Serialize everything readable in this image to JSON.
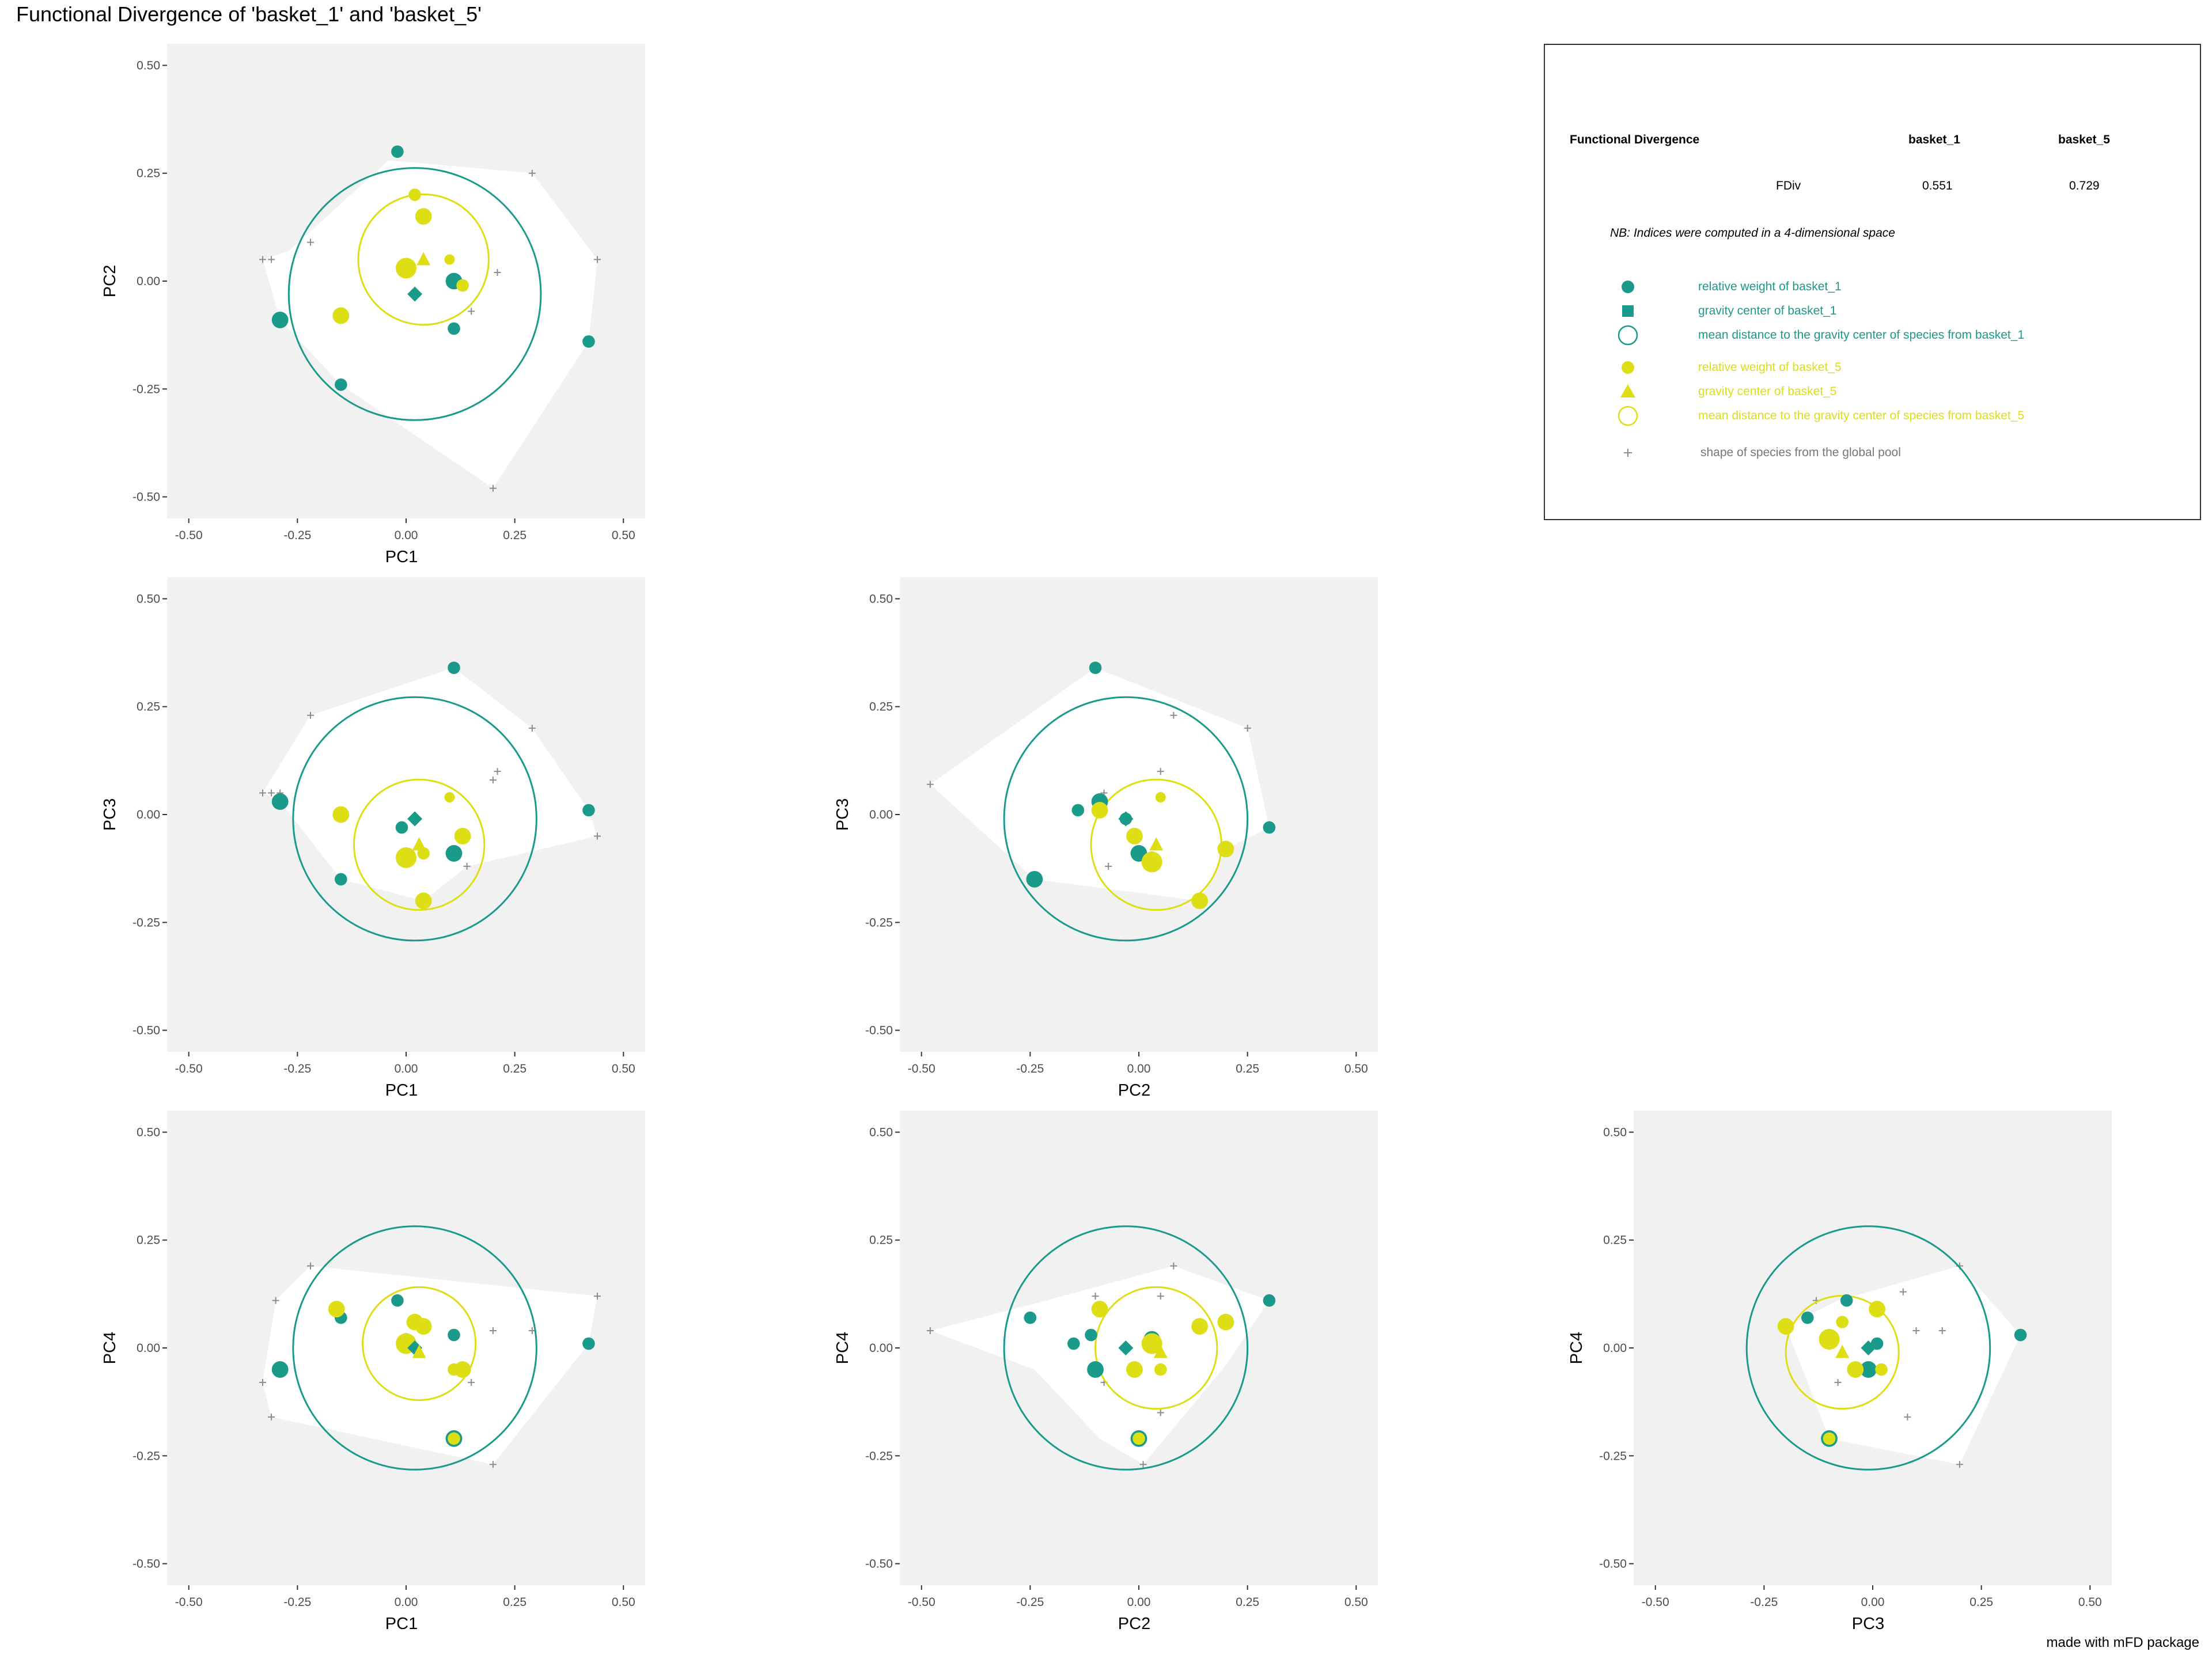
{
  "page": {
    "title": "Functional Divergence of 'basket_1' and 'basket_5'",
    "caption": "made with mFD package"
  },
  "colors": {
    "basket_1": "#1a9a8a",
    "basket_5": "#dede14",
    "pool": "#8c8c8c",
    "panel_bg": "#f1f1f1",
    "hull": "#ffffff"
  },
  "legend": {
    "header": {
      "title": "Functional Divergence",
      "col1": "basket_1",
      "col2": "basket_5"
    },
    "row": {
      "label": "FDiv",
      "v1": "0.551",
      "v2": "0.729"
    },
    "note": "NB: Indices were computed in a 4-dimensional space",
    "items": [
      {
        "symbol": "circle",
        "group": "basket_1",
        "text": "relative weight of basket_1"
      },
      {
        "symbol": "square",
        "group": "basket_1",
        "text": " gravity center of basket_1"
      },
      {
        "symbol": "open-circle",
        "group": "basket_1",
        "text": "mean distance to the gravity center of species from basket_1"
      },
      {
        "symbol": "circle",
        "group": "basket_5",
        "text": "relative weight of basket_5"
      },
      {
        "symbol": "triangle",
        "group": "basket_5",
        "text": " gravity center of basket_5"
      },
      {
        "symbol": "open-circle",
        "group": "basket_5",
        "text": "mean distance to the gravity center of species from basket_5"
      },
      {
        "symbol": "plus",
        "group": "pool",
        "text": "shape of species from the global pool"
      }
    ]
  },
  "chart_data": [
    {
      "type": "scatter",
      "xlabel": "PC1",
      "ylabel": "PC2",
      "xlim": [
        -0.55,
        0.55
      ],
      "ylim": [
        -0.55,
        0.55
      ],
      "ticks": [
        "-0.50",
        "-0.25",
        "0.00",
        "0.25",
        "0.50"
      ],
      "hull": [
        [
          -0.33,
          0.05
        ],
        [
          -0.27,
          0.07
        ],
        [
          -0.04,
          0.28
        ],
        [
          0.29,
          0.25
        ],
        [
          0.44,
          0.05
        ],
        [
          0.42,
          -0.14
        ],
        [
          0.2,
          -0.48
        ],
        [
          -0.15,
          -0.24
        ],
        [
          -0.29,
          -0.09
        ]
      ],
      "pool": [
        [
          -0.33,
          0.05
        ],
        [
          -0.31,
          0.05
        ],
        [
          -0.22,
          0.09
        ],
        [
          0.29,
          0.25
        ],
        [
          0.44,
          0.05
        ],
        [
          0.21,
          0.02
        ],
        [
          0.15,
          -0.07
        ],
        [
          0.2,
          -0.48
        ]
      ],
      "circle_1": {
        "center": [
          0.02,
          -0.03
        ],
        "r": 0.29
      },
      "circle_5": {
        "center": [
          0.04,
          0.05
        ],
        "r": 0.15
      },
      "basket_1": [
        [
          -0.02,
          0.3,
          3
        ],
        [
          -0.29,
          -0.09,
          4
        ],
        [
          -0.15,
          -0.24,
          3
        ],
        [
          0.0,
          0.03,
          3
        ],
        [
          0.11,
          0.0,
          4
        ],
        [
          0.11,
          -0.11,
          3
        ],
        [
          0.42,
          -0.14,
          3
        ]
      ],
      "basket_5": [
        [
          0.02,
          0.2,
          3
        ],
        [
          0.04,
          0.15,
          4
        ],
        [
          -0.15,
          -0.08,
          4
        ],
        [
          0.0,
          0.03,
          5
        ],
        [
          0.1,
          0.05,
          2.5
        ],
        [
          0.13,
          -0.01,
          3
        ]
      ],
      "gravity_1": [
        0.02,
        -0.03
      ],
      "gravity_5": [
        0.04,
        0.05
      ]
    },
    {
      "type": "scatter",
      "xlabel": "PC1",
      "ylabel": "PC3",
      "xlim": [
        -0.55,
        0.55
      ],
      "ylim": [
        -0.55,
        0.55
      ],
      "ticks": [
        "-0.50",
        "-0.25",
        "0.00",
        "0.25",
        "0.50"
      ],
      "hull": [
        [
          -0.33,
          0.05
        ],
        [
          -0.22,
          0.23
        ],
        [
          0.11,
          0.34
        ],
        [
          0.29,
          0.2
        ],
        [
          0.42,
          0.01
        ],
        [
          0.44,
          -0.05
        ],
        [
          0.14,
          -0.12
        ],
        [
          0.04,
          -0.2
        ],
        [
          -0.15,
          -0.15
        ],
        [
          -0.29,
          0.03
        ]
      ],
      "pool": [
        [
          -0.33,
          0.05
        ],
        [
          -0.31,
          0.05
        ],
        [
          -0.29,
          0.05
        ],
        [
          -0.22,
          0.23
        ],
        [
          0.29,
          0.2
        ],
        [
          0.21,
          0.1
        ],
        [
          0.2,
          0.08
        ],
        [
          0.44,
          -0.05
        ],
        [
          0.14,
          -0.12
        ]
      ],
      "circle_1": {
        "center": [
          0.02,
          -0.01
        ],
        "r": 0.28
      },
      "circle_5": {
        "center": [
          0.03,
          -0.07
        ],
        "r": 0.15
      },
      "basket_1": [
        [
          0.11,
          0.34,
          3
        ],
        [
          -0.29,
          0.03,
          4
        ],
        [
          -0.15,
          -0.15,
          3
        ],
        [
          -0.01,
          -0.03,
          3
        ],
        [
          0.0,
          -0.1,
          3
        ],
        [
          0.11,
          -0.09,
          4
        ],
        [
          0.42,
          0.01,
          3
        ]
      ],
      "basket_5": [
        [
          0.1,
          0.04,
          2.5
        ],
        [
          -0.15,
          0.0,
          4
        ],
        [
          0.0,
          -0.1,
          5
        ],
        [
          0.04,
          -0.09,
          3
        ],
        [
          0.13,
          -0.05,
          4
        ],
        [
          0.04,
          -0.2,
          4
        ]
      ],
      "gravity_1": [
        0.02,
        -0.01
      ],
      "gravity_5": [
        0.03,
        -0.07
      ]
    },
    {
      "type": "scatter",
      "xlabel": "PC2",
      "ylabel": "PC3",
      "xlim": [
        -0.55,
        0.55
      ],
      "ylim": [
        -0.55,
        0.55
      ],
      "ticks": [
        "-0.50",
        "-0.25",
        "0.00",
        "0.25",
        "0.50"
      ],
      "hull": [
        [
          -0.48,
          0.07
        ],
        [
          -0.1,
          0.34
        ],
        [
          0.25,
          0.2
        ],
        [
          0.3,
          -0.03
        ],
        [
          0.2,
          -0.08
        ],
        [
          0.14,
          -0.2
        ],
        [
          -0.24,
          -0.15
        ]
      ],
      "pool": [
        [
          -0.48,
          0.07
        ],
        [
          0.08,
          0.23
        ],
        [
          0.25,
          0.2
        ],
        [
          0.05,
          0.1
        ],
        [
          -0.08,
          0.05
        ],
        [
          -0.07,
          -0.12
        ]
      ],
      "circle_1": {
        "center": [
          -0.03,
          -0.01
        ],
        "r": 0.28
      },
      "circle_5": {
        "center": [
          0.04,
          -0.07
        ],
        "r": 0.15
      },
      "basket_1": [
        [
          -0.1,
          0.34,
          3
        ],
        [
          -0.14,
          0.01,
          3
        ],
        [
          -0.09,
          0.03,
          4
        ],
        [
          -0.03,
          -0.01,
          3
        ],
        [
          0.0,
          -0.09,
          4
        ],
        [
          0.03,
          -0.1,
          3
        ],
        [
          0.3,
          -0.03,
          3
        ],
        [
          -0.24,
          -0.15,
          4
        ]
      ],
      "basket_5": [
        [
          -0.09,
          0.01,
          4
        ],
        [
          0.05,
          0.04,
          2.5
        ],
        [
          -0.01,
          -0.05,
          4
        ],
        [
          0.03,
          -0.11,
          5
        ],
        [
          0.2,
          -0.08,
          4
        ],
        [
          0.14,
          -0.2,
          4
        ]
      ],
      "gravity_1": [
        -0.03,
        -0.01
      ],
      "gravity_5": [
        0.04,
        -0.07
      ]
    },
    {
      "type": "scatter",
      "xlabel": "PC1",
      "ylabel": "PC4",
      "xlim": [
        -0.55,
        0.55
      ],
      "ylim": [
        -0.55,
        0.55
      ],
      "ticks": [
        "-0.50",
        "-0.25",
        "0.00",
        "0.25",
        "0.50"
      ],
      "hull": [
        [
          -0.33,
          -0.08
        ],
        [
          -0.3,
          0.11
        ],
        [
          -0.22,
          0.19
        ],
        [
          0.44,
          0.12
        ],
        [
          0.42,
          0.01
        ],
        [
          0.2,
          -0.27
        ],
        [
          -0.31,
          -0.16
        ]
      ],
      "pool": [
        [
          -0.33,
          -0.08
        ],
        [
          -0.3,
          0.11
        ],
        [
          -0.22,
          0.19
        ],
        [
          0.44,
          0.12
        ],
        [
          0.29,
          0.04
        ],
        [
          0.2,
          0.04
        ],
        [
          0.15,
          -0.08
        ],
        [
          0.2,
          -0.27
        ],
        [
          -0.31,
          -0.16
        ]
      ],
      "circle_1": {
        "center": [
          0.02,
          0.0
        ],
        "r": 0.28
      },
      "circle_5": {
        "center": [
          0.03,
          0.01
        ],
        "r": 0.13
      },
      "basket_1": [
        [
          -0.02,
          0.11,
          3
        ],
        [
          -0.15,
          0.07,
          3
        ],
        [
          -0.29,
          -0.05,
          4
        ],
        [
          0.0,
          0.02,
          3
        ],
        [
          0.11,
          0.03,
          3
        ],
        [
          0.11,
          -0.21,
          4
        ],
        [
          0.42,
          0.01,
          3
        ]
      ],
      "basket_5": [
        [
          -0.16,
          0.09,
          4
        ],
        [
          0.02,
          0.06,
          4
        ],
        [
          0.04,
          0.05,
          4
        ],
        [
          0.0,
          0.01,
          5
        ],
        [
          0.11,
          -0.05,
          3
        ],
        [
          0.13,
          -0.05,
          4
        ],
        [
          0.11,
          -0.21,
          3
        ]
      ],
      "gravity_1": [
        0.02,
        0.0
      ],
      "gravity_5": [
        0.03,
        -0.01
      ]
    },
    {
      "type": "scatter",
      "xlabel": "PC2",
      "ylabel": "PC4",
      "xlim": [
        -0.55,
        0.55
      ],
      "ylim": [
        -0.55,
        0.55
      ],
      "ticks": [
        "-0.50",
        "-0.25",
        "0.00",
        "0.25",
        "0.50"
      ],
      "hull": [
        [
          -0.48,
          0.04
        ],
        [
          -0.25,
          0.1
        ],
        [
          0.08,
          0.19
        ],
        [
          0.3,
          0.11
        ],
        [
          0.2,
          -0.04
        ],
        [
          0.01,
          -0.27
        ],
        [
          -0.09,
          -0.21
        ],
        [
          -0.24,
          -0.05
        ]
      ],
      "pool": [
        [
          -0.48,
          0.04
        ],
        [
          0.08,
          0.19
        ],
        [
          -0.1,
          0.12
        ],
        [
          0.05,
          0.12
        ],
        [
          0.2,
          0.05
        ],
        [
          -0.08,
          -0.08
        ],
        [
          0.05,
          -0.15
        ],
        [
          0.01,
          -0.27
        ]
      ],
      "circle_1": {
        "center": [
          -0.03,
          0.0
        ],
        "r": 0.28
      },
      "circle_5": {
        "center": [
          0.04,
          0.0
        ],
        "r": 0.14
      },
      "basket_1": [
        [
          -0.25,
          0.07,
          3
        ],
        [
          -0.15,
          0.01,
          3
        ],
        [
          -0.11,
          0.03,
          3
        ],
        [
          -0.1,
          -0.05,
          4
        ],
        [
          0.3,
          0.11,
          3
        ],
        [
          0.03,
          0.02,
          4
        ],
        [
          0.0,
          -0.21,
          4
        ]
      ],
      "basket_5": [
        [
          -0.09,
          0.09,
          4
        ],
        [
          -0.01,
          -0.05,
          4
        ],
        [
          0.05,
          -0.05,
          3
        ],
        [
          0.03,
          0.01,
          5
        ],
        [
          0.14,
          0.05,
          4
        ],
        [
          0.2,
          0.06,
          4
        ],
        [
          0.0,
          -0.21,
          3
        ]
      ],
      "gravity_1": [
        -0.03,
        0.0
      ],
      "gravity_5": [
        0.05,
        -0.01
      ]
    },
    {
      "type": "scatter",
      "xlabel": "PC3",
      "ylabel": "PC4",
      "xlim": [
        -0.55,
        0.55
      ],
      "ylim": [
        -0.55,
        0.55
      ],
      "ticks": [
        "-0.50",
        "-0.25",
        "0.00",
        "0.25",
        "0.50"
      ],
      "hull": [
        [
          -0.2,
          0.05
        ],
        [
          -0.08,
          0.11
        ],
        [
          0.2,
          0.19
        ],
        [
          0.34,
          0.03
        ],
        [
          0.2,
          -0.27
        ],
        [
          -0.1,
          -0.21
        ]
      ],
      "pool": [
        [
          0.2,
          0.19
        ],
        [
          0.07,
          0.13
        ],
        [
          -0.13,
          0.11
        ],
        [
          0.1,
          0.04
        ],
        [
          0.16,
          0.04
        ],
        [
          -0.08,
          -0.08
        ],
        [
          0.0,
          -0.05
        ],
        [
          0.08,
          -0.16
        ],
        [
          0.2,
          -0.27
        ]
      ],
      "circle_1": {
        "center": [
          -0.01,
          0.0
        ],
        "r": 0.28
      },
      "circle_5": {
        "center": [
          -0.07,
          -0.01
        ],
        "r": 0.13
      },
      "basket_1": [
        [
          -0.15,
          0.07,
          3
        ],
        [
          -0.06,
          0.11,
          3
        ],
        [
          0.01,
          0.01,
          3
        ],
        [
          -0.1,
          0.02,
          4
        ],
        [
          -0.01,
          -0.05,
          4
        ],
        [
          0.34,
          0.03,
          3
        ],
        [
          -0.1,
          -0.21,
          4
        ]
      ],
      "basket_5": [
        [
          -0.2,
          0.05,
          4
        ],
        [
          -0.07,
          0.06,
          3
        ],
        [
          0.01,
          0.09,
          4
        ],
        [
          -0.1,
          0.02,
          5
        ],
        [
          -0.04,
          -0.05,
          4
        ],
        [
          0.02,
          -0.05,
          3
        ],
        [
          -0.1,
          -0.21,
          3
        ]
      ],
      "gravity_1": [
        -0.01,
        0.0
      ],
      "gravity_5": [
        -0.07,
        -0.01
      ]
    }
  ]
}
